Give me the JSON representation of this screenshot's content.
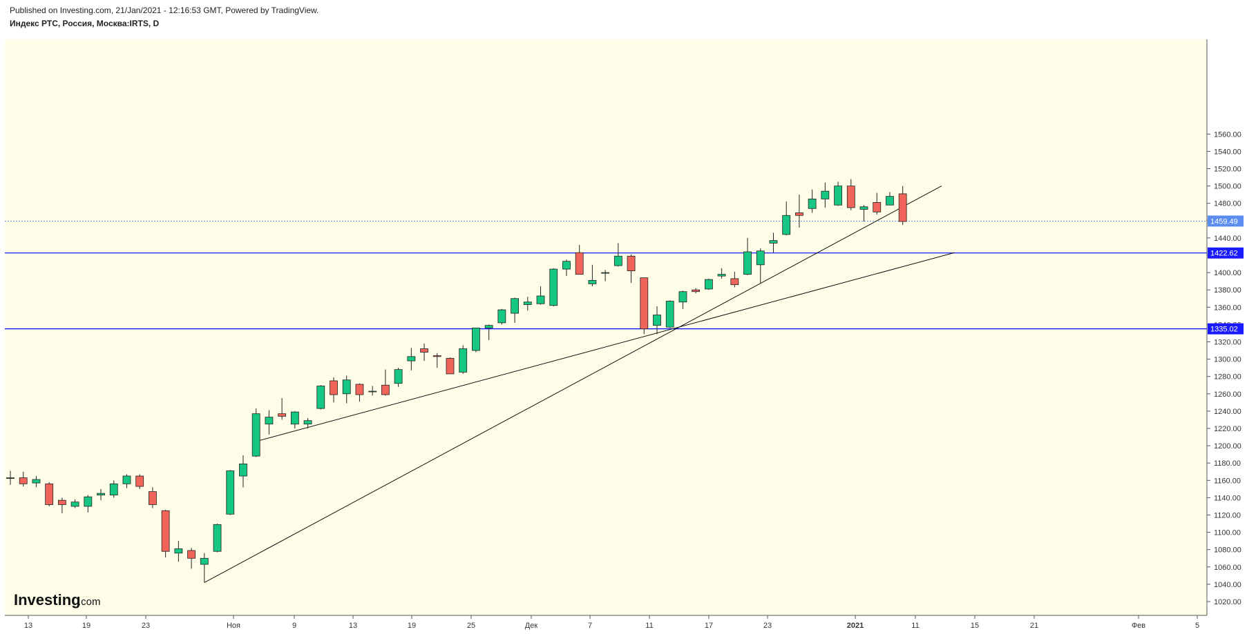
{
  "header": {
    "published": "Published on Investing.com, 21/Jan/2021 - 12:16:53 GMT, Powered by TradingView.",
    "instrument": "Индекс РТС, Россия, Москва:IRTS, D"
  },
  "logo": {
    "brand": "Investing",
    "suffix": ".com"
  },
  "colors": {
    "background": "#fdfde8",
    "up": "#16c784",
    "down": "#f0645a",
    "level_line": "#0000ff",
    "last_price_tag": "#5b8def",
    "level_tag": "#1a1aff"
  },
  "chart_data": {
    "type": "candlestick",
    "x_tick_labels": [
      "13",
      "19",
      "23",
      "Ноя",
      "9",
      "13",
      "19",
      "25",
      "Дек",
      "7",
      "11",
      "17",
      "23",
      "2021",
      "11",
      "15",
      "21",
      "Фев",
      "5"
    ],
    "y_tick_labels": [
      "1020.00",
      "1040.00",
      "1060.00",
      "1080.00",
      "1100.00",
      "1120.00",
      "1140.00",
      "1160.00",
      "1180.00",
      "1200.00",
      "1220.00",
      "1240.00",
      "1260.00",
      "1280.00",
      "1300.00",
      "1320.00",
      "1340.00",
      "1360.00",
      "1380.00",
      "1400.00",
      "1420.00",
      "1440.00",
      "1460.00",
      "1480.00",
      "1500.00",
      "1520.00",
      "1540.00",
      "1560.00"
    ],
    "ylim": [
      1010,
      1580
    ],
    "candles": [
      {
        "date": "12 Oct",
        "o": 1163,
        "h": 1171,
        "l": 1155,
        "c": 1163
      },
      {
        "date": "13 Oct",
        "o": 1163,
        "h": 1170,
        "l": 1153,
        "c": 1156
      },
      {
        "date": "14 Oct",
        "o": 1157,
        "h": 1165,
        "l": 1152,
        "c": 1161
      },
      {
        "date": "15 Oct",
        "o": 1156,
        "h": 1158,
        "l": 1130,
        "c": 1132
      },
      {
        "date": "16 Oct",
        "o": 1137,
        "h": 1140,
        "l": 1122,
        "c": 1132
      },
      {
        "date": "19 Oct",
        "o": 1130,
        "h": 1138,
        "l": 1128,
        "c": 1135
      },
      {
        "date": "20 Oct",
        "o": 1130,
        "h": 1143,
        "l": 1123,
        "c": 1141
      },
      {
        "date": "21 Oct",
        "o": 1143,
        "h": 1150,
        "l": 1137,
        "c": 1145
      },
      {
        "date": "22 Oct",
        "o": 1143,
        "h": 1160,
        "l": 1140,
        "c": 1156
      },
      {
        "date": "23 Oct",
        "o": 1156,
        "h": 1167,
        "l": 1151,
        "c": 1165
      },
      {
        "date": "26 Oct",
        "o": 1165,
        "h": 1167,
        "l": 1150,
        "c": 1153
      },
      {
        "date": "27 Oct",
        "o": 1147,
        "h": 1152,
        "l": 1128,
        "c": 1132
      },
      {
        "date": "28 Oct",
        "o": 1125,
        "h": 1126,
        "l": 1071,
        "c": 1078
      },
      {
        "date": "29 Oct",
        "o": 1076,
        "h": 1090,
        "l": 1066,
        "c": 1081
      },
      {
        "date": "30 Oct",
        "o": 1079,
        "h": 1082,
        "l": 1058,
        "c": 1070
      },
      {
        "date": "2 Nov",
        "o": 1063,
        "h": 1076,
        "l": 1042,
        "c": 1070
      },
      {
        "date": "3 Nov",
        "o": 1078,
        "h": 1110,
        "l": 1077,
        "c": 1109
      },
      {
        "date": "5 Nov",
        "o": 1121,
        "h": 1172,
        "l": 1120,
        "c": 1171
      },
      {
        "date": "6 Nov",
        "o": 1165,
        "h": 1189,
        "l": 1152,
        "c": 1179
      },
      {
        "date": "9 Nov",
        "o": 1188,
        "h": 1243,
        "l": 1187,
        "c": 1237
      },
      {
        "date": "10 Nov",
        "o": 1225,
        "h": 1241,
        "l": 1213,
        "c": 1233
      },
      {
        "date": "11 Nov",
        "o": 1237,
        "h": 1255,
        "l": 1230,
        "c": 1234
      },
      {
        "date": "12 Nov",
        "o": 1225,
        "h": 1240,
        "l": 1220,
        "c": 1239
      },
      {
        "date": "13 Nov",
        "o": 1225,
        "h": 1232,
        "l": 1220,
        "c": 1229
      },
      {
        "date": "16 Nov",
        "o": 1243,
        "h": 1270,
        "l": 1242,
        "c": 1269
      },
      {
        "date": "17 Nov",
        "o": 1275,
        "h": 1279,
        "l": 1250,
        "c": 1259
      },
      {
        "date": "18 Nov",
        "o": 1260,
        "h": 1281,
        "l": 1249,
        "c": 1276
      },
      {
        "date": "19 Nov",
        "o": 1271,
        "h": 1272,
        "l": 1251,
        "c": 1259
      },
      {
        "date": "20 Nov",
        "o": 1263,
        "h": 1269,
        "l": 1258,
        "c": 1263
      },
      {
        "date": "23 Nov",
        "o": 1270,
        "h": 1288,
        "l": 1258,
        "c": 1259
      },
      {
        "date": "24 Nov",
        "o": 1272,
        "h": 1290,
        "l": 1268,
        "c": 1288
      },
      {
        "date": "25 Nov",
        "o": 1298,
        "h": 1313,
        "l": 1287,
        "c": 1303
      },
      {
        "date": "26 Nov",
        "o": 1312,
        "h": 1318,
        "l": 1298,
        "c": 1308
      },
      {
        "date": "27 Nov",
        "o": 1304,
        "h": 1307,
        "l": 1290,
        "c": 1303
      },
      {
        "date": "30 Nov",
        "o": 1301,
        "h": 1302,
        "l": 1283,
        "c": 1283
      },
      {
        "date": "1 Dec",
        "o": 1285,
        "h": 1316,
        "l": 1283,
        "c": 1312
      },
      {
        "date": "2 Dec",
        "o": 1310,
        "h": 1335,
        "l": 1308,
        "c": 1336
      },
      {
        "date": "3 Dec",
        "o": 1336,
        "h": 1340,
        "l": 1322,
        "c": 1339
      },
      {
        "date": "4 Dec",
        "o": 1342,
        "h": 1358,
        "l": 1340,
        "c": 1357
      },
      {
        "date": "7 Dec",
        "o": 1353,
        "h": 1371,
        "l": 1342,
        "c": 1370
      },
      {
        "date": "8 Dec",
        "o": 1363,
        "h": 1372,
        "l": 1356,
        "c": 1366
      },
      {
        "date": "9 Dec",
        "o": 1364,
        "h": 1384,
        "l": 1363,
        "c": 1373
      },
      {
        "date": "10 Dec",
        "o": 1362,
        "h": 1405,
        "l": 1361,
        "c": 1404
      },
      {
        "date": "11 Dec",
        "o": 1404,
        "h": 1415,
        "l": 1396,
        "c": 1413
      },
      {
        "date": "14 Dec",
        "o": 1423,
        "h": 1432,
        "l": 1398,
        "c": 1398
      },
      {
        "date": "15 Dec",
        "o": 1387,
        "h": 1409,
        "l": 1384,
        "c": 1391
      },
      {
        "date": "16 Dec",
        "o": 1400,
        "h": 1403,
        "l": 1390,
        "c": 1400
      },
      {
        "date": "17 Dec",
        "o": 1408,
        "h": 1434,
        "l": 1407,
        "c": 1419
      },
      {
        "date": "18 Dec",
        "o": 1419,
        "h": 1421,
        "l": 1388,
        "c": 1402
      },
      {
        "date": "21 Dec",
        "o": 1394,
        "h": 1394,
        "l": 1329,
        "c": 1335
      },
      {
        "date": "22 Dec",
        "o": 1339,
        "h": 1361,
        "l": 1329,
        "c": 1351
      },
      {
        "date": "23 Dec",
        "o": 1337,
        "h": 1368,
        "l": 1336,
        "c": 1367
      },
      {
        "date": "24 Dec",
        "o": 1366,
        "h": 1379,
        "l": 1358,
        "c": 1378
      },
      {
        "date": "25 Dec",
        "o": 1380,
        "h": 1382,
        "l": 1376,
        "c": 1378
      },
      {
        "date": "28 Dec",
        "o": 1381,
        "h": 1393,
        "l": 1380,
        "c": 1392
      },
      {
        "date": "29 Dec",
        "o": 1396,
        "h": 1405,
        "l": 1393,
        "c": 1398
      },
      {
        "date": "30 Dec",
        "o": 1393,
        "h": 1401,
        "l": 1383,
        "c": 1386
      },
      {
        "date": "4 Jan",
        "o": 1398,
        "h": 1440,
        "l": 1397,
        "c": 1424
      },
      {
        "date": "5 Jan",
        "o": 1409,
        "h": 1428,
        "l": 1388,
        "c": 1425
      },
      {
        "date": "6 Jan",
        "o": 1434,
        "h": 1446,
        "l": 1423,
        "c": 1437
      },
      {
        "date": "8 Jan",
        "o": 1444,
        "h": 1482,
        "l": 1443,
        "c": 1466
      },
      {
        "date": "11 Jan",
        "o": 1469,
        "h": 1490,
        "l": 1452,
        "c": 1466
      },
      {
        "date": "12 Jan",
        "o": 1474,
        "h": 1496,
        "l": 1469,
        "c": 1485
      },
      {
        "date": "13 Jan",
        "o": 1485,
        "h": 1504,
        "l": 1475,
        "c": 1494
      },
      {
        "date": "14 Jan",
        "o": 1478,
        "h": 1505,
        "l": 1477,
        "c": 1500
      },
      {
        "date": "15 Jan",
        "o": 1500,
        "h": 1508,
        "l": 1472,
        "c": 1475
      },
      {
        "date": "18 Jan",
        "o": 1473,
        "h": 1478,
        "l": 1459,
        "c": 1476
      },
      {
        "date": "19 Jan",
        "o": 1481,
        "h": 1492,
        "l": 1467,
        "c": 1470
      },
      {
        "date": "20 Jan",
        "o": 1478,
        "h": 1493,
        "l": 1478,
        "c": 1488
      },
      {
        "date": "21 Jan",
        "o": 1491,
        "h": 1500,
        "l": 1455,
        "c": 1459
      }
    ],
    "horizontal_levels": [
      {
        "value": 1459.49,
        "label": "1459.49",
        "style": "dotted",
        "kind": "last"
      },
      {
        "value": 1422.62,
        "label": "1422.62",
        "style": "solid",
        "kind": "level"
      },
      {
        "value": 1335.02,
        "label": "1335.02",
        "style": "solid",
        "kind": "level"
      }
    ],
    "trendlines": [
      {
        "from": {
          "date": "2 Nov",
          "value": 1042
        },
        "to": {
          "date": "24 Jan",
          "value": 1500
        }
      },
      {
        "from": {
          "date": "9 Nov",
          "value": 1205
        },
        "to": {
          "date": "25 Jan",
          "value": 1423
        }
      }
    ]
  }
}
